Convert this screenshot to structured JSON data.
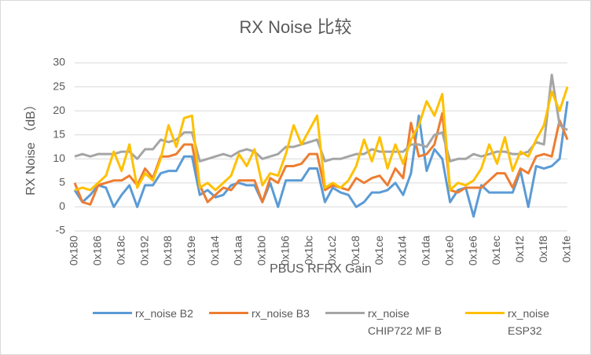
{
  "chart_data": {
    "type": "line",
    "title": "RX Noise 比较",
    "x_label": "PBUS  RFRX  Gain",
    "y_label": "RX Noise （dB）",
    "categories": [
      "0x180",
      null,
      null,
      "0x186",
      null,
      null,
      "0x18c",
      null,
      null,
      "0x192",
      null,
      null,
      "0x198",
      null,
      null,
      "0x19e",
      null,
      null,
      "0x1a4",
      null,
      null,
      "0x1aa",
      null,
      null,
      "0x1b0",
      null,
      null,
      "0x1b6",
      null,
      null,
      "0x1bc",
      null,
      null,
      "0x1c2",
      null,
      null,
      "0x1c8",
      null,
      null,
      "0x1ce",
      null,
      null,
      "0x1d4",
      null,
      null,
      "0x1da",
      null,
      null,
      "0x1e0",
      null,
      null,
      "0x1e6",
      null,
      null,
      "0x1ec",
      null,
      null,
      "0x1f2",
      null,
      null,
      "0x1f8",
      null,
      null,
      "0x1fe"
    ],
    "series": [
      {
        "name": "rx_noise B2",
        "color": "#5b9bd5",
        "values": [
          3.5,
          1,
          2.5,
          4.5,
          4,
          0,
          2.5,
          4.5,
          0,
          4.5,
          4.5,
          7,
          7.5,
          7.5,
          10.5,
          10.5,
          2.5,
          3.5,
          2,
          2.5,
          4.5,
          5,
          4.5,
          4.5,
          1,
          5,
          0,
          5.5,
          5.5,
          5.5,
          8,
          8,
          1,
          4,
          3,
          2.5,
          0,
          1,
          3,
          3,
          3.5,
          5,
          2.5,
          7,
          19,
          7.5,
          12,
          10,
          1,
          3.5,
          4,
          -2,
          4.5,
          3,
          3,
          3,
          3,
          7.5,
          0,
          8.5,
          8,
          8.5,
          10,
          22
        ]
      },
      {
        "name": "rx_noise B3",
        "color": "#ed7d31",
        "values": [
          5,
          1,
          0.5,
          4.5,
          5,
          5.5,
          5.5,
          6.5,
          4.5,
          8,
          6,
          10.5,
          10.5,
          11,
          13,
          13,
          4.5,
          1,
          2.5,
          4,
          3.5,
          5.5,
          5.5,
          5.5,
          1,
          6,
          5,
          8.5,
          8.5,
          9,
          11,
          11,
          3.5,
          4.5,
          4,
          3.5,
          6,
          5,
          6,
          6.5,
          4.5,
          8,
          6,
          17.5,
          10.5,
          11,
          13,
          19.5,
          3.5,
          3,
          4,
          4,
          4,
          5.5,
          7,
          7,
          4,
          8,
          7,
          10.5,
          11,
          10.5,
          18,
          14
        ]
      },
      {
        "name": "rx_noise CHIP722 MF B",
        "color": "#a5a5a5",
        "values": [
          10.5,
          11,
          10.5,
          11,
          11,
          11,
          11.5,
          11.5,
          10,
          12,
          12,
          14,
          13.5,
          14,
          15.5,
          15.5,
          9.5,
          10,
          10.5,
          11,
          10.5,
          11.5,
          12,
          11.5,
          10,
          10.5,
          11,
          12.5,
          12.5,
          13,
          13.5,
          14,
          9.5,
          10,
          10,
          10.5,
          11,
          11,
          12,
          11.5,
          11.5,
          11.5,
          11.5,
          13,
          13,
          12.5,
          15,
          15.5,
          9.5,
          10,
          10,
          11,
          10.5,
          11,
          11.5,
          11.5,
          11,
          11,
          11.5,
          13.5,
          13,
          27.5,
          17,
          16
        ]
      },
      {
        "name": "rx_noise ESP32",
        "color": "#ffc000",
        "values": [
          3.5,
          4,
          3.5,
          5,
          6.5,
          11.5,
          7.5,
          13,
          4,
          7,
          5.5,
          10,
          17,
          12.5,
          18.5,
          19,
          4,
          5,
          3.5,
          5,
          6.5,
          11,
          8.5,
          12,
          4.5,
          7,
          6.5,
          11,
          17,
          13,
          16,
          19,
          4,
          5,
          4,
          5.5,
          8.5,
          14,
          9.5,
          14.5,
          8,
          13,
          9,
          14,
          17,
          22,
          19,
          23.5,
          3.5,
          5,
          4.5,
          5.5,
          8,
          13,
          9,
          14.5,
          7.5,
          11.5,
          10.5,
          14,
          17,
          24,
          20,
          25
        ]
      }
    ],
    "ylim": [
      -5,
      30
    ],
    "yticks": [
      -5,
      0,
      5,
      10,
      15,
      20,
      25,
      30
    ],
    "grid": true
  }
}
